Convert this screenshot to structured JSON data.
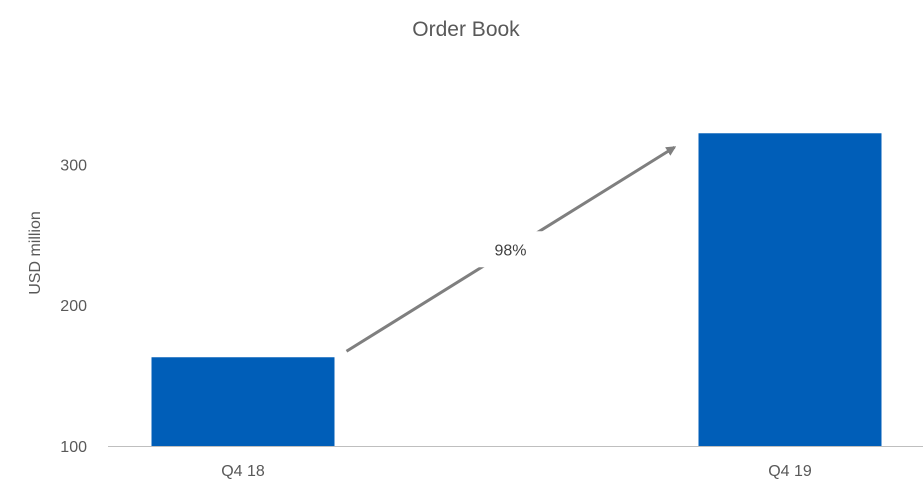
{
  "chart_data": {
    "type": "bar",
    "title": "Order Book",
    "xlabel": "",
    "ylabel": "USD million",
    "categories": [
      "Q4 18",
      "Q4 19"
    ],
    "values": [
      163,
      322
    ],
    "ylim": [
      100,
      330
    ],
    "yticks": [
      100,
      200,
      300
    ],
    "grid": false,
    "legend": "none",
    "bar_color": "#005EB8",
    "annotation": {
      "text": "98%",
      "type": "arrow",
      "from_category": "Q4 18",
      "to_category": "Q4 19",
      "color": "#7F7F7F"
    }
  }
}
